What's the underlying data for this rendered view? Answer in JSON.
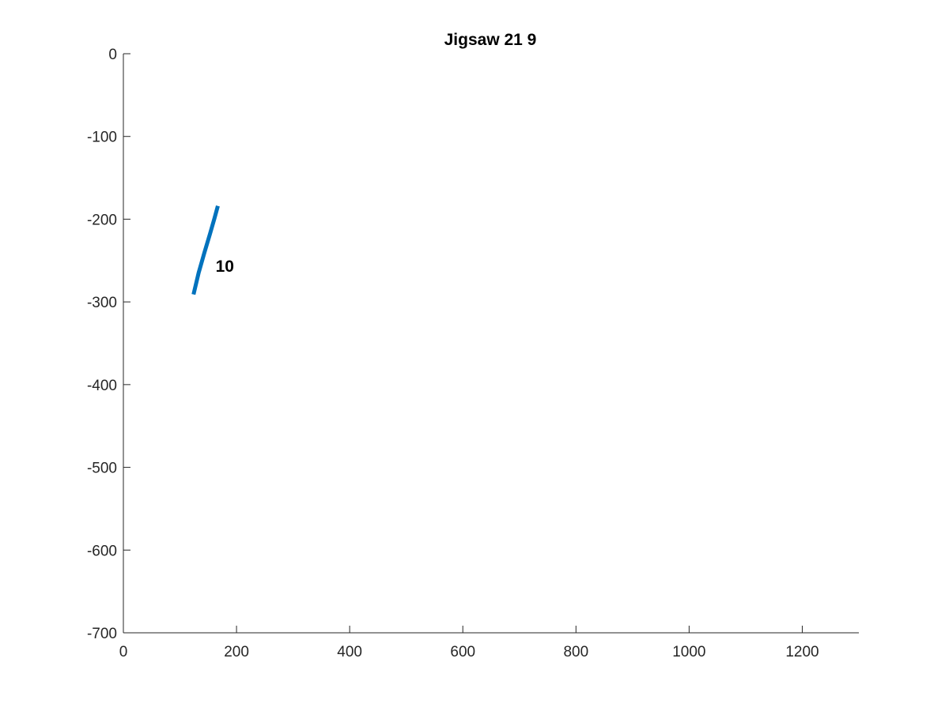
{
  "chart_data": {
    "type": "line",
    "title": "Jigsaw 21 9",
    "xlabel": "",
    "ylabel": "",
    "xlim": [
      0,
      1300
    ],
    "ylim": [
      -700,
      0
    ],
    "x_ticks": [
      0,
      200,
      400,
      600,
      800,
      1000,
      1200
    ],
    "y_ticks": [
      0,
      -100,
      -200,
      -300,
      -400,
      -500,
      -600,
      -700
    ],
    "x_tick_labels": [
      "0",
      "200",
      "400",
      "600",
      "800",
      "1000",
      "1200"
    ],
    "y_tick_labels": [
      "0",
      "-100",
      "-200",
      "-300",
      "-400",
      "-500",
      "-600",
      "-700"
    ],
    "grid": false,
    "series": [
      {
        "color": "#0072BD",
        "x": [
          124,
          133,
          143,
          153,
          161,
          167
        ],
        "y": [
          -291,
          -265,
          -241,
          -218,
          -199,
          -184
        ]
      }
    ],
    "annotations": [
      {
        "text": "10",
        "x": 163,
        "y": -257
      }
    ]
  }
}
